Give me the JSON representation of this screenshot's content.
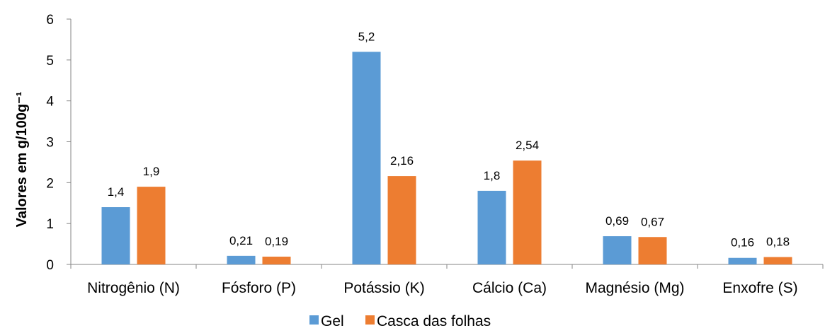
{
  "chart_data": {
    "type": "bar",
    "title": "",
    "xlabel": "",
    "ylabel": "Valores em g/100g⁻¹",
    "ylim": [
      0,
      6
    ],
    "yticks": [
      "0",
      "1",
      "2",
      "3",
      "4",
      "5",
      "6"
    ],
    "categories": [
      "Nitrogênio (N)",
      "Fósforo (P)",
      "Potássio (K)",
      "Cálcio (Ca)",
      "Magnésio (Mg)",
      "Enxofre (S)"
    ],
    "series": [
      {
        "name": "Gel",
        "color": "#5B9BD5",
        "values": [
          1.4,
          0.21,
          5.2,
          1.8,
          0.69,
          0.16
        ],
        "labels": [
          "1,4",
          "0,21",
          "5,2",
          "1,8",
          "0,69",
          "0,16"
        ]
      },
      {
        "name": "Casca das folhas",
        "color": "#ED7D31",
        "values": [
          1.9,
          0.19,
          2.16,
          2.54,
          0.67,
          0.18
        ],
        "labels": [
          "1,9",
          "0,19",
          "2,16",
          "2,54",
          "0,67",
          "0,18"
        ]
      }
    ],
    "grid": false,
    "legend_position": "bottom"
  }
}
